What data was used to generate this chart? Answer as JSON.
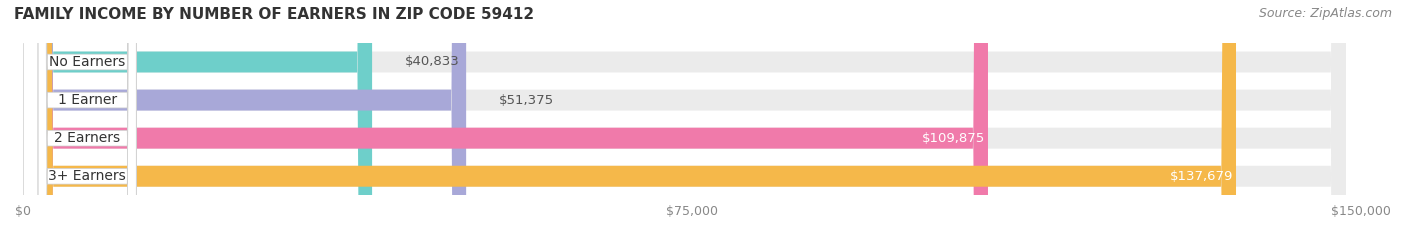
{
  "title": "FAMILY INCOME BY NUMBER OF EARNERS IN ZIP CODE 59412",
  "source": "Source: ZipAtlas.com",
  "categories": [
    "No Earners",
    "1 Earner",
    "2 Earners",
    "3+ Earners"
  ],
  "values": [
    40833,
    51375,
    109875,
    137679
  ],
  "value_labels": [
    "$40,833",
    "$51,375",
    "$109,875",
    "$137,679"
  ],
  "bar_colors": [
    "#6ecfca",
    "#a8a8d8",
    "#f07aaa",
    "#f5b84a"
  ],
  "track_color": "#ebebeb",
  "xlim": [
    0,
    150000
  ],
  "xtick_values": [
    0,
    75000,
    150000
  ],
  "xtick_labels": [
    "$0",
    "$75,000",
    "$150,000"
  ],
  "bar_height": 0.55,
  "background_color": "#ffffff",
  "title_fontsize": 11,
  "source_fontsize": 9,
  "label_fontsize": 10,
  "value_fontsize": 9.5,
  "tick_fontsize": 9
}
